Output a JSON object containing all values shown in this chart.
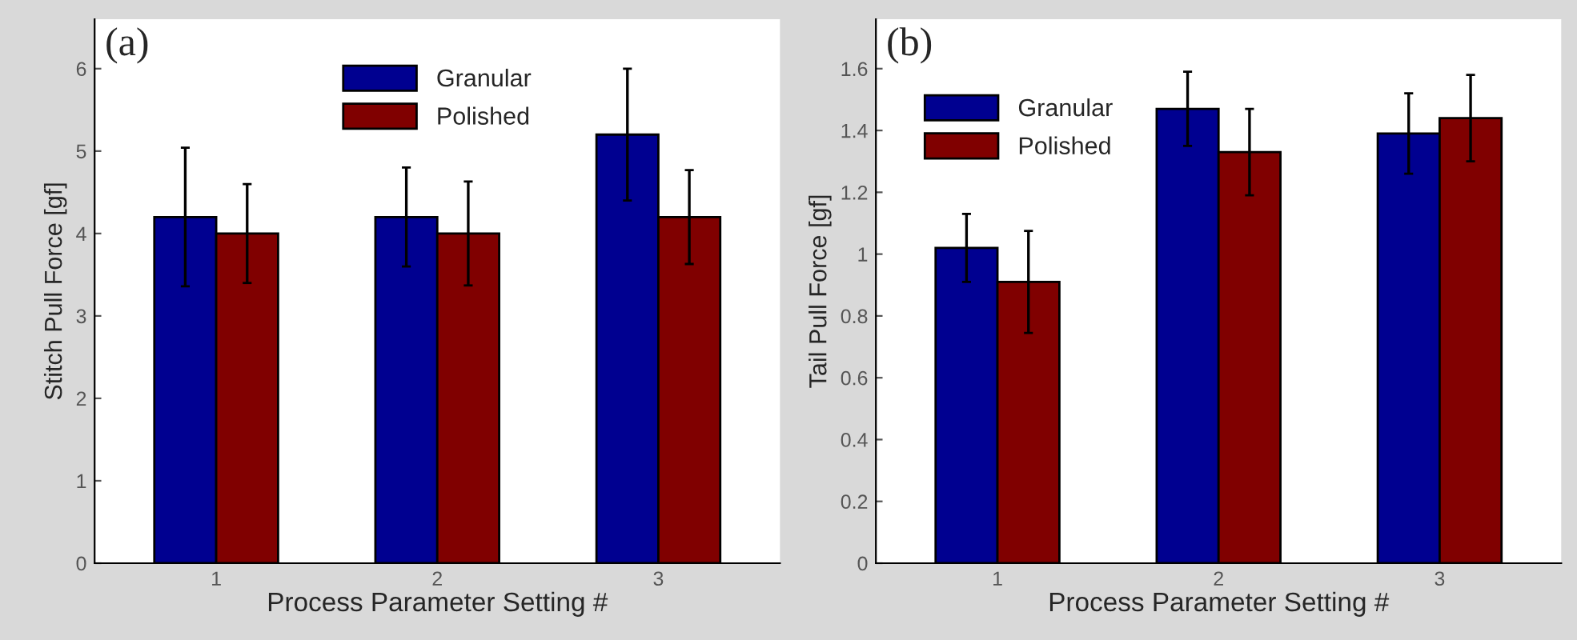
{
  "chart_data": [
    {
      "type": "bar",
      "categories": [
        "1",
        "2",
        "3"
      ],
      "xlabel": "Process Parameter Setting #",
      "ylabel": "Stitch Pull Force [gf]",
      "annotations": [
        "(a)"
      ],
      "ylim": [
        0,
        6.6
      ],
      "yticks": [
        0,
        1,
        2,
        3,
        4,
        5,
        6
      ],
      "legend": "top",
      "series": [
        {
          "name": "Granular",
          "color": "#000090",
          "values": [
            4.2,
            4.2,
            5.2
          ],
          "errors": [
            0.84,
            0.6,
            0.8
          ]
        },
        {
          "name": "Polished",
          "color": "#800000",
          "values": [
            4.0,
            4.0,
            4.2
          ],
          "errors": [
            0.6,
            0.63,
            0.57
          ]
        }
      ]
    },
    {
      "type": "bar",
      "categories": [
        "1",
        "2",
        "3"
      ],
      "xlabel": "Process Parameter Setting #",
      "ylabel": "Tail Pull Force [gf]",
      "annotations": [
        "(b)"
      ],
      "ylim": [
        0,
        1.76
      ],
      "yticks": [
        0,
        0.2,
        0.4,
        0.6,
        0.8,
        1,
        1.2,
        1.4,
        1.6
      ],
      "legend": "top left",
      "series": [
        {
          "name": "Granular",
          "color": "#000090",
          "values": [
            1.02,
            1.47,
            1.39
          ],
          "errors": [
            0.11,
            0.12,
            0.13
          ]
        },
        {
          "name": "Polished",
          "color": "#800000",
          "values": [
            0.91,
            1.33,
            1.44
          ],
          "errors": [
            0.165,
            0.14,
            0.14
          ]
        }
      ]
    }
  ]
}
